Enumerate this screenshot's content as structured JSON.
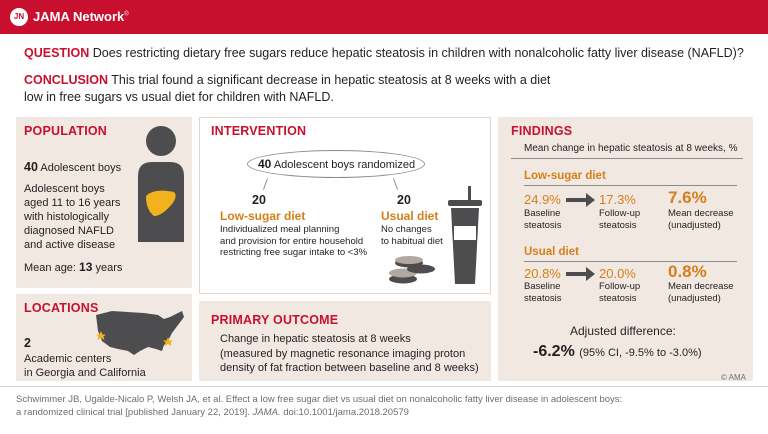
{
  "brand": {
    "logo_text": "JN",
    "name": "JAMA Network",
    "trademark": "®"
  },
  "question": {
    "label": "QUESTION",
    "text": "Does restricting dietary free sugars reduce hepatic steatosis in children with nonalcoholic fatty liver disease (NAFLD)?"
  },
  "conclusion": {
    "label": "CONCLUSION",
    "line1": "This trial found a significant decrease in hepatic steatosis at 8 weeks with a diet",
    "line2": "low in free sugars vs usual diet for children with NAFLD."
  },
  "population": {
    "title": "POPULATION",
    "count": "40",
    "count_label": "Adolescent boys",
    "desc": [
      "Adolescent boys",
      "aged 11 to 16 years",
      "with histologically",
      "diagnosed NAFLD",
      "and active disease"
    ],
    "mean_age_label": "Mean age:",
    "mean_age_value": "13",
    "mean_age_unit": "years"
  },
  "locations": {
    "title": "LOCATIONS",
    "count": "2",
    "line1": "Academic centers",
    "line2": "in Georgia and California"
  },
  "intervention": {
    "title": "INTERVENTION",
    "randomized_count": "40",
    "randomized_label": "Adolescent boys randomized",
    "arm1": {
      "count": "20",
      "name": "Low-sugar diet",
      "desc": [
        "Individualized meal planning",
        "and provision for entire household",
        "restricting free sugar intake to <3%"
      ]
    },
    "arm2": {
      "count": "20",
      "name": "Usual diet",
      "desc": [
        "No changes",
        "to habitual diet"
      ]
    }
  },
  "primary_outcome": {
    "title": "PRIMARY OUTCOME",
    "lines": [
      "Change in hepatic steatosis at 8 weeks",
      "(measured by magnetic resonance imaging proton",
      "density of fat fraction between baseline and 8 weeks)"
    ]
  },
  "findings": {
    "title": "FINDINGS",
    "subtitle": "Mean change in hepatic steatosis at 8 weeks, %",
    "groups": [
      {
        "name": "Low-sugar diet",
        "baseline": "24.9%",
        "followup": "17.3%",
        "decrease": "7.6%",
        "baseline_label": [
          "Baseline",
          "steatosis"
        ],
        "followup_label": [
          "Follow-up",
          "steatosis"
        ],
        "decrease_label": [
          "Mean decrease",
          "(unadjusted)"
        ]
      },
      {
        "name": "Usual diet",
        "baseline": "20.8%",
        "followup": "20.0%",
        "decrease": "0.8%",
        "baseline_label": [
          "Baseline",
          "steatosis"
        ],
        "followup_label": [
          "Follow-up",
          "steatosis"
        ],
        "decrease_label": [
          "Mean decrease",
          "(unadjusted)"
        ]
      }
    ],
    "adjusted_label": "Adjusted difference:",
    "adjusted_value": "-6.2%",
    "adjusted_ci": "(95% CI, -9.5% to -3.0%)"
  },
  "copyright": "© AMA",
  "citation": {
    "line1": "Schwimmer JB, Ugalde-Nicalo P, Welsh JA, et al. Effect a low free sugar diet vs usual diet on nonalcoholic fatty liver disease in adolescent boys:",
    "line2_a": "a randomized clinical trial [published January 22, 2019].",
    "line2_journal": "JAMA.",
    "line2_b": "doi:10.1001/jama.2018.20579"
  },
  "colors": {
    "accent_red": "#c8102e",
    "accent_orange": "#d57f1a",
    "panel_bg": "#f1e8e2",
    "dark_gray": "#4d4d4f",
    "liver": "#f2b21b"
  }
}
